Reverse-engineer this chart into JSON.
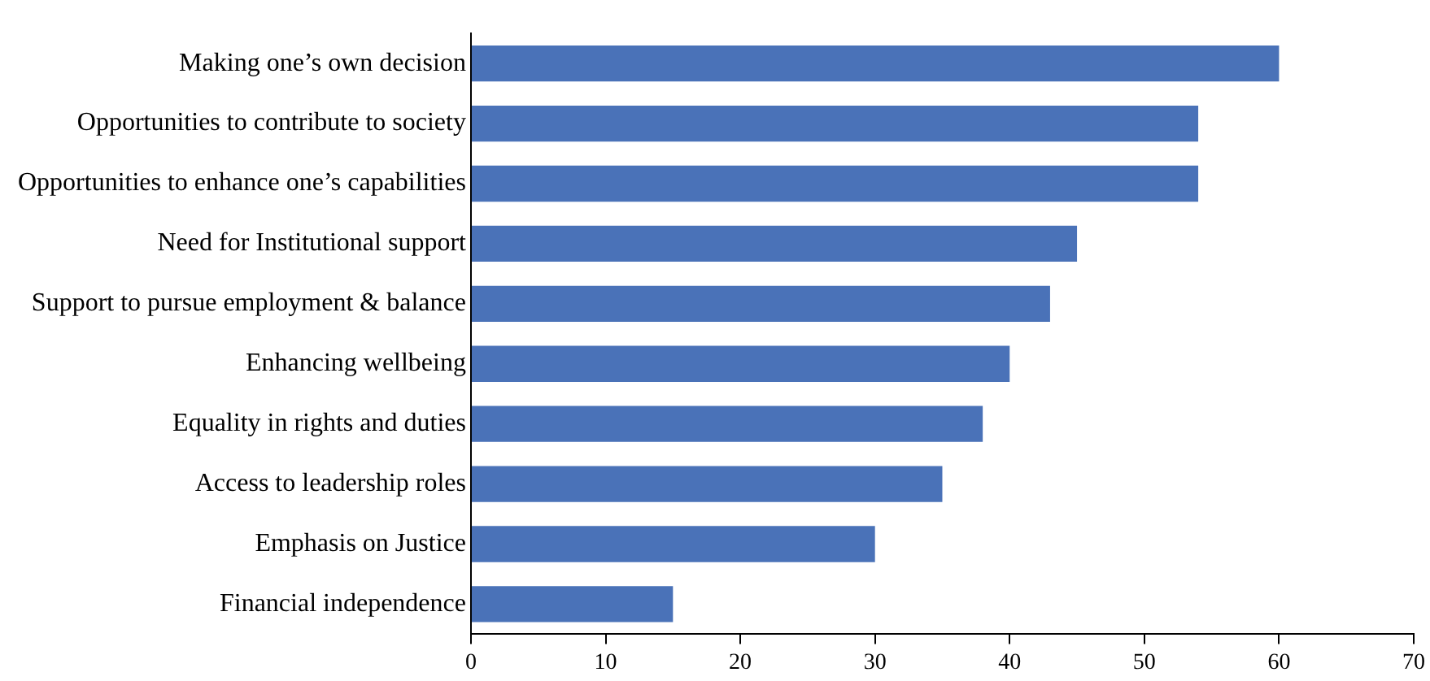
{
  "chart_data": {
    "type": "bar",
    "orientation": "horizontal",
    "categories": [
      "Making one’s own decision",
      "Opportunities to contribute to society",
      "Opportunities to enhance one’s capabilities",
      "Need for Institutional support",
      "Support to pursue employment & balance",
      "Enhancing wellbeing",
      "Equality in rights and duties",
      "Access to leadership roles",
      "Emphasis on Justice",
      "Financial independence"
    ],
    "values": [
      60,
      54,
      54,
      45,
      43,
      40,
      38,
      35,
      30,
      15
    ],
    "color": "#4a72b8",
    "xlim": [
      0,
      70
    ],
    "xticks": [
      0,
      10,
      20,
      30,
      40,
      50,
      60,
      70
    ],
    "grid": false,
    "legend": false
  }
}
